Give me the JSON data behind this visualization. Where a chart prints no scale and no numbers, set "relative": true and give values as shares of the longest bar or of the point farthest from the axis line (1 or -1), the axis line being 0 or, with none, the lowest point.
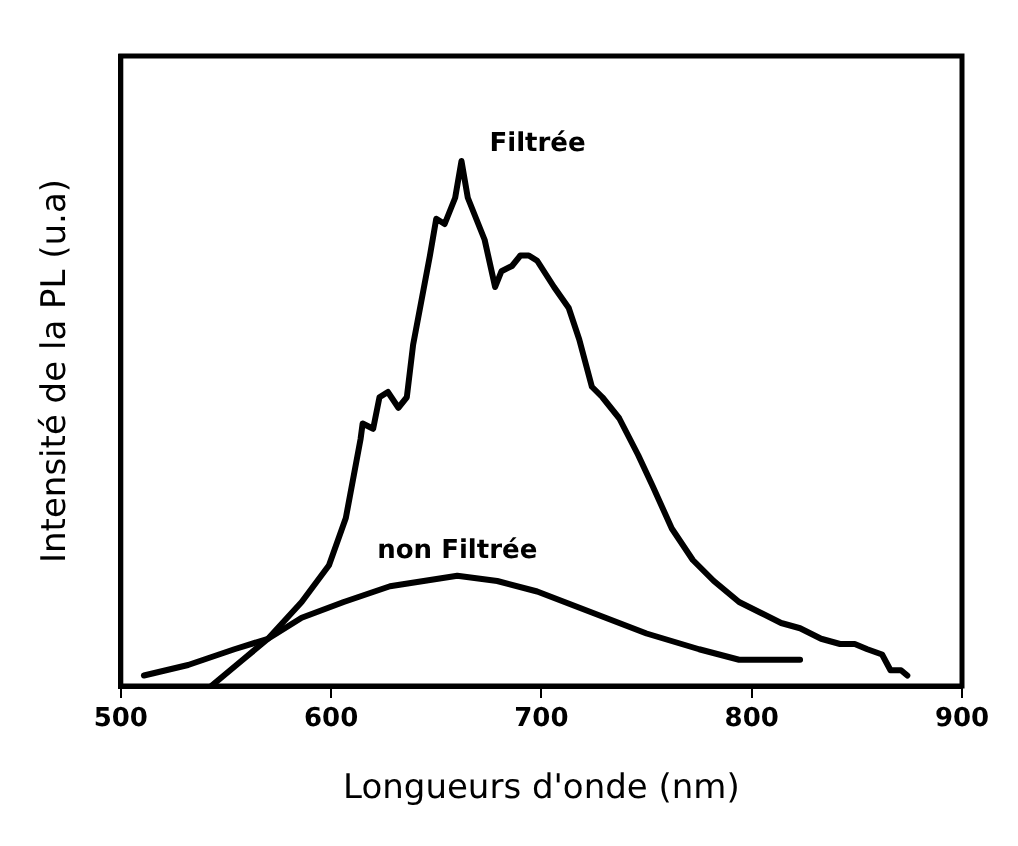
{
  "chart_data": {
    "type": "line",
    "xlabel": "Longueurs d'onde (nm)",
    "ylabel": "Intensité de la PL (u.a)",
    "relative": true,
    "xlim": [
      500,
      900
    ],
    "xticks": [
      500,
      600,
      700,
      800,
      900
    ],
    "grid": false,
    "legend": false,
    "marker": "none",
    "line_style": "solid",
    "series": [
      {
        "name": "Filtrée",
        "color": "#000000",
        "x": [
          543,
          558,
          570,
          586,
          599,
          607,
          614,
          615,
          620,
          623,
          627,
          632,
          636,
          639,
          647,
          650,
          654,
          656,
          659,
          662,
          665,
          673,
          678,
          681,
          686,
          690,
          694,
          698,
          706,
          713,
          718,
          720,
          724,
          729,
          737,
          746,
          753,
          762,
          772,
          782,
          794,
          804,
          814,
          823,
          833,
          842,
          849,
          855,
          862,
          866,
          871,
          874
        ],
        "values": [
          0,
          0.05,
          0.09,
          0.16,
          0.23,
          0.32,
          0.47,
          0.5,
          0.49,
          0.55,
          0.56,
          0.53,
          0.55,
          0.65,
          0.82,
          0.89,
          0.88,
          0.9,
          0.93,
          1,
          0.93,
          0.85,
          0.76,
          0.79,
          0.8,
          0.82,
          0.82,
          0.81,
          0.76,
          0.72,
          0.66,
          0.63,
          0.57,
          0.55,
          0.51,
          0.44,
          0.38,
          0.3,
          0.24,
          0.2,
          0.16,
          0.14,
          0.12,
          0.11,
          0.09,
          0.08,
          0.08,
          0.07,
          0.06,
          0.03,
          0.03,
          0.02
        ]
      },
      {
        "name": "non Filtrée",
        "color": "#000000",
        "x": [
          511,
          532,
          554,
          570,
          586,
          606,
          628,
          644,
          660,
          679,
          698,
          724,
          750,
          775,
          794,
          823
        ],
        "values": [
          0.02,
          0.04,
          0.07,
          0.09,
          0.13,
          0.16,
          0.19,
          0.2,
          0.21,
          0.2,
          0.18,
          0.14,
          0.1,
          0.07,
          0.05,
          0.05
        ]
      }
    ]
  }
}
